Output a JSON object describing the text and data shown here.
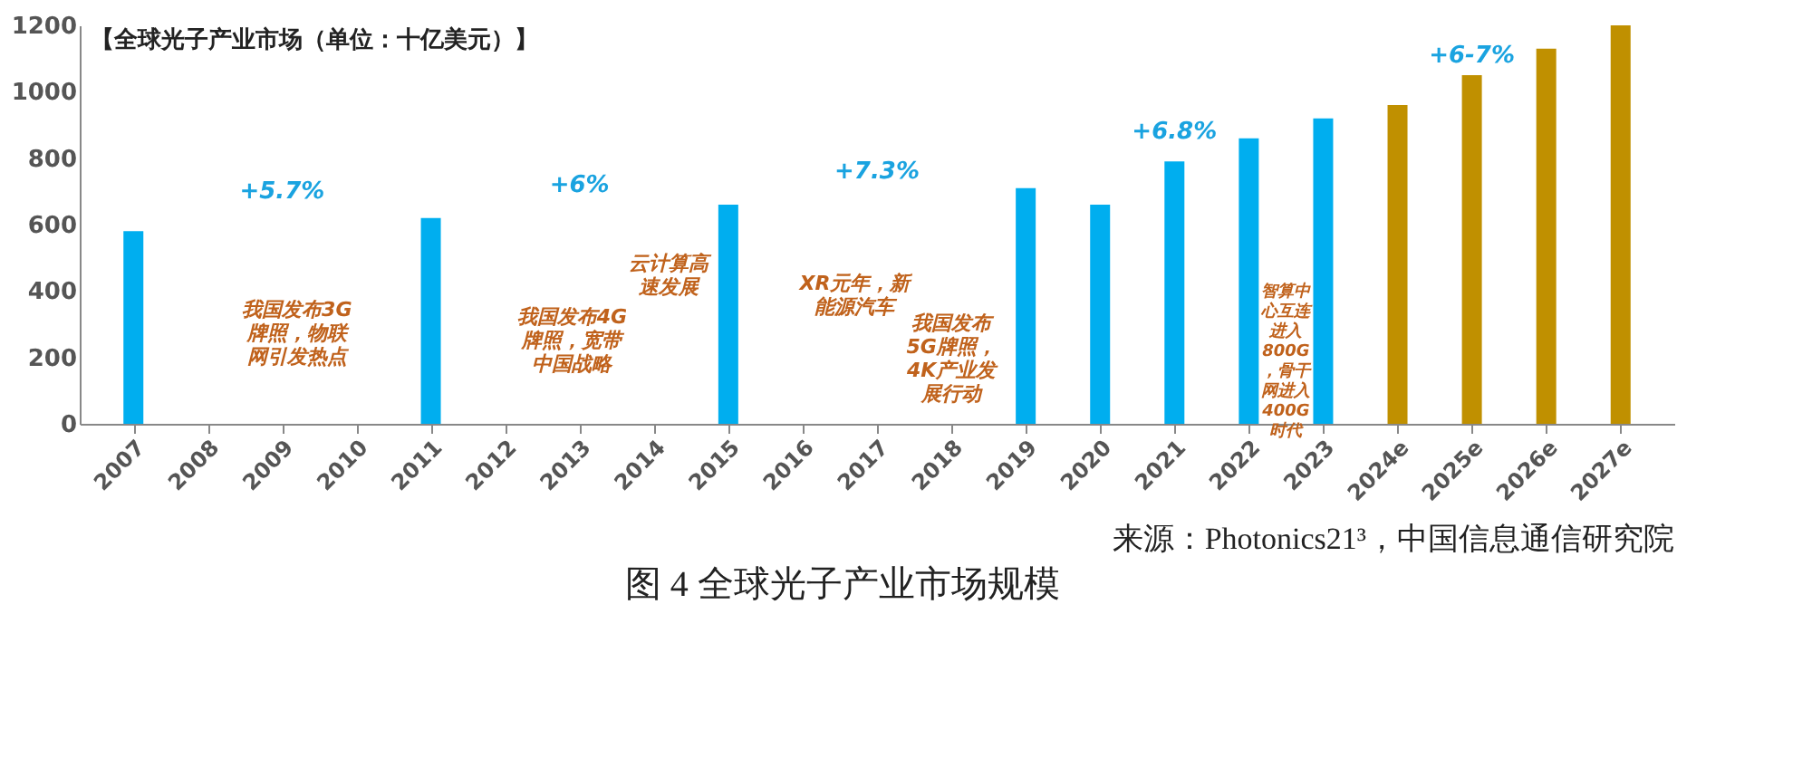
{
  "chart_data": {
    "type": "bar",
    "title": "图 4 全球光子产业市场规模",
    "subtitle": "【全球光子产业市场（单位：十亿美元）】",
    "categories": [
      "2007",
      "2008",
      "2009",
      "2010",
      "2011",
      "2012",
      "2013",
      "2014",
      "2015",
      "2016",
      "2017",
      "2018",
      "2019",
      "2020",
      "2021",
      "2022",
      "2023",
      "2024e",
      "2025e",
      "2026e",
      "2027e"
    ],
    "values": [
      580,
      null,
      null,
      null,
      620,
      null,
      null,
      null,
      660,
      null,
      null,
      null,
      710,
      660,
      790,
      860,
      920,
      960,
      1050,
      1130,
      1200
    ],
    "colors": [
      "#00aeef",
      null,
      null,
      null,
      "#00aeef",
      null,
      null,
      null,
      "#00aeef",
      null,
      null,
      null,
      "#00aeef",
      "#00aeef",
      "#00aeef",
      "#00aeef",
      "#00aeef",
      "#c09000",
      "#c09000",
      "#c09000",
      "#c09000"
    ],
    "ylim": [
      0,
      1200
    ],
    "yticks": [
      0,
      200,
      400,
      600,
      800,
      1000,
      1200
    ],
    "grid": false,
    "annotations": [
      "+5.7%",
      "+6%",
      "+7.3%",
      "+6.8%",
      "+6-7%",
      "我国发布3G牌照，物联网引发热点",
      "我国发布4G牌照，宽带中国战略",
      "云计算高速发展",
      "XR元年，新能源汽车",
      "我国发布5G牌照，4K产业发展行动",
      "智算中心互连进入800G，骨干网进入400G时代",
      "来源：Photonics21³，中国信息通信研究院"
    ]
  }
}
